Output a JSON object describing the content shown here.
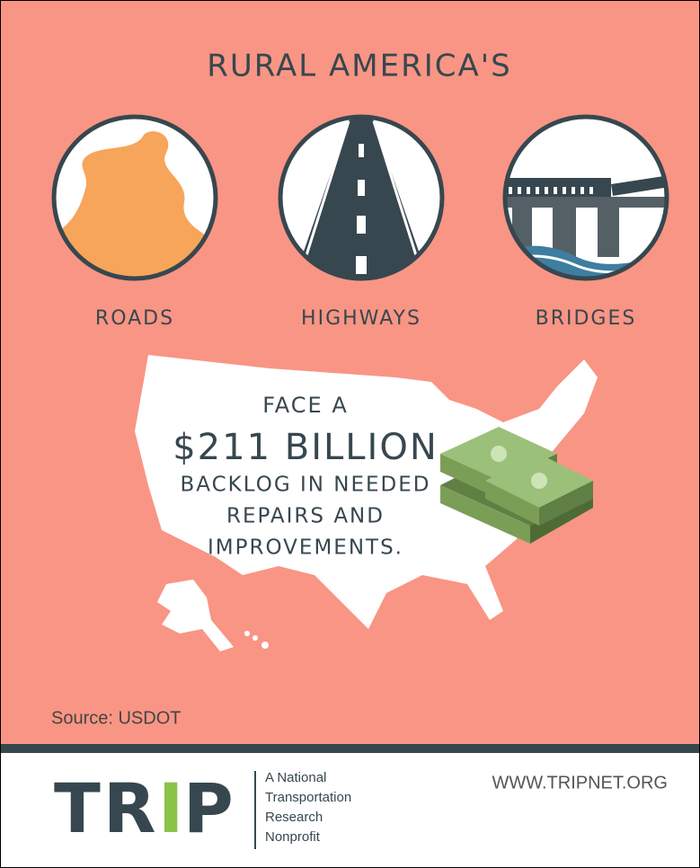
{
  "header": {
    "title": "RURAL AMERICA'S"
  },
  "icons": [
    {
      "label": "ROADS"
    },
    {
      "label": "HIGHWAYS"
    },
    {
      "label": "BRIDGES"
    }
  ],
  "message": {
    "lead": "FACE A",
    "amount": "$211 BILLION",
    "lines": [
      "BACKLOG IN NEEDED",
      "REPAIRS AND",
      "IMPROVEMENTS."
    ]
  },
  "source": "Source: USDOT",
  "footer": {
    "logo": {
      "letters": [
        "T",
        "R",
        "I",
        "P"
      ]
    },
    "tagline": [
      "A National",
      "Transportation",
      "Research",
      "Nonprofit"
    ],
    "url": "WWW.TRIPNET.ORG"
  }
}
